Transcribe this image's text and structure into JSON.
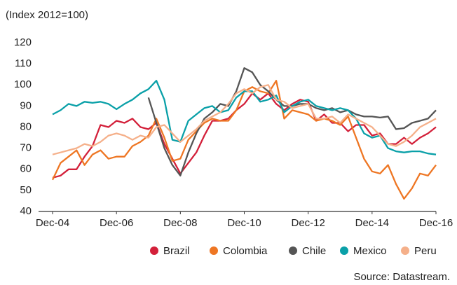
{
  "chart_data": {
    "type": "line",
    "ylabel": "(Index 2012=100)",
    "source": "Source: Datastream.",
    "categories": [
      "Dec-04",
      null,
      null,
      null,
      null,
      null,
      null,
      null,
      "Dec-06",
      null,
      null,
      null,
      null,
      null,
      null,
      null,
      "Dec-08",
      null,
      null,
      null,
      null,
      null,
      null,
      null,
      "Dec-10",
      null,
      null,
      null,
      null,
      null,
      null,
      null,
      "Dec-12",
      null,
      null,
      null,
      null,
      null,
      null,
      null,
      "Dec-14",
      null,
      null,
      null,
      null,
      null,
      null,
      null,
      "Dec-16"
    ],
    "ylim": [
      40,
      120
    ],
    "yticks": [
      40,
      50,
      60,
      70,
      80,
      90,
      100,
      110,
      120
    ],
    "grid": false,
    "legend": "bottom",
    "series": [
      {
        "name": "Brazil",
        "color": "#d3203a",
        "values": [
          56,
          57,
          60,
          60,
          66,
          71,
          81,
          80,
          83,
          82,
          84,
          80,
          79,
          82,
          72,
          65,
          58,
          63,
          68,
          76,
          83,
          83,
          84,
          88,
          91,
          96,
          93,
          96,
          91,
          88,
          91,
          93,
          92,
          83,
          86,
          82,
          82,
          78,
          81,
          81,
          76,
          77,
          72,
          72,
          75,
          72,
          75,
          77,
          80
        ]
      },
      {
        "name": "Colombia",
        "color": "#ee7623",
        "values": [
          55,
          63,
          66,
          69,
          62,
          67,
          69,
          65,
          66,
          66,
          71,
          73,
          76,
          84,
          75,
          64,
          65,
          74,
          78,
          82,
          84,
          83,
          83,
          88,
          97,
          99,
          97,
          96,
          102,
          84,
          88,
          87,
          86,
          83,
          84,
          83,
          81,
          85,
          75,
          65,
          59,
          58,
          62,
          53,
          46,
          51,
          58,
          57,
          62
        ]
      },
      {
        "name": "Chile",
        "color": "#555555",
        "values": [
          null,
          null,
          null,
          null,
          null,
          null,
          null,
          null,
          null,
          null,
          null,
          null,
          94,
          82,
          70,
          62,
          57,
          68,
          77,
          84,
          87,
          91,
          90,
          97,
          108,
          106,
          100,
          97,
          93,
          90,
          90,
          91,
          91,
          89,
          88,
          89,
          87,
          88,
          86,
          85,
          85,
          84.5,
          85,
          79,
          79.5,
          82,
          83,
          84,
          88
        ]
      },
      {
        "name": "Mexico",
        "color": "#0aa0a8",
        "values": [
          86,
          88,
          91,
          90,
          92,
          91.5,
          92,
          91,
          88.5,
          91,
          93,
          96,
          98,
          102,
          93,
          74,
          73,
          83,
          86,
          89,
          90,
          87,
          88,
          94,
          97,
          97,
          92,
          93,
          95,
          87,
          90,
          92,
          93,
          90,
          89,
          88,
          89,
          88,
          84,
          77,
          75,
          76,
          70,
          68.5,
          68,
          68.5,
          68.5,
          67.5,
          67
        ]
      },
      {
        "name": "Peru",
        "color": "#f5b08a",
        "values": [
          67,
          68,
          69,
          70,
          72,
          71,
          73,
          76,
          77,
          76,
          74,
          76,
          75,
          80,
          81,
          77,
          73,
          76,
          79,
          83,
          85,
          87,
          91,
          96,
          98,
          96,
          99,
          100,
          93,
          92,
          89,
          90,
          91,
          84,
          84,
          85,
          82,
          86,
          84,
          82,
          80,
          76,
          72,
          71,
          73,
          76,
          80,
          82,
          84
        ]
      }
    ]
  }
}
